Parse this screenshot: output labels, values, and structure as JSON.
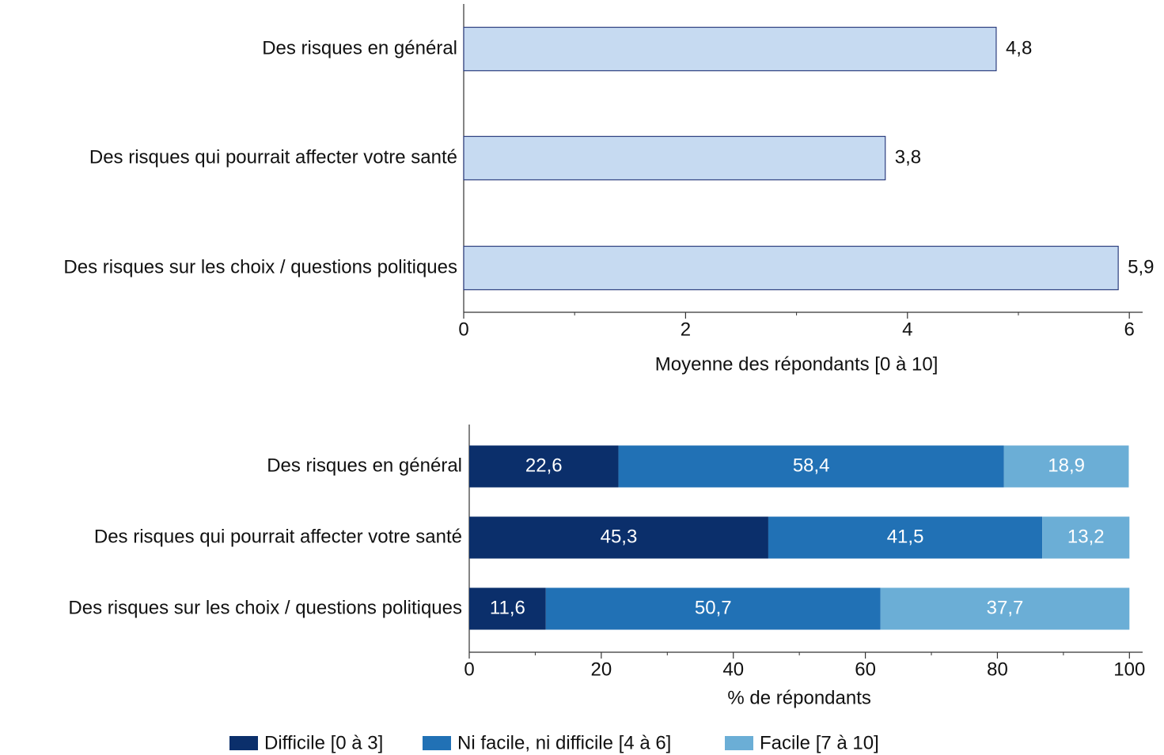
{
  "chart_data": [
    {
      "type": "hbar",
      "categories": [
        "Des risques en général",
        "Des risques qui pourrait affecter votre santé",
        "Des risques sur les choix / questions politiques"
      ],
      "values": [
        4.8,
        3.8,
        5.9
      ],
      "value_labels": [
        "4,8",
        "3,8",
        "5,9"
      ],
      "color": "#c6daf1",
      "edge_color": "#2e3f7f",
      "xlabel": "Moyenne des répondants [0 à 10]",
      "xlim": [
        0,
        6.12
      ],
      "xticks": [
        0,
        2,
        4,
        6
      ],
      "minor_xticks": [
        1,
        3,
        5
      ]
    },
    {
      "type": "stacked_hbar",
      "categories": [
        "Des risques en général",
        "Des risques qui pourrait affecter votre santé",
        "Des risques sur les choix / questions politiques"
      ],
      "series": [
        {
          "name": "Difficile [0 à 3]",
          "color": "#0b2f6b",
          "values": [
            22.6,
            45.3,
            11.6
          ],
          "value_labels": [
            "22,6",
            "45,3",
            "11,6"
          ]
        },
        {
          "name": "Ni facile, ni difficile [4 à 6]",
          "color": "#2171b5",
          "values": [
            58.4,
            41.5,
            50.7
          ],
          "value_labels": [
            "58,4",
            "41,5",
            "50,7"
          ]
        },
        {
          "name": "Facile [7 à 10]",
          "color": "#6baed6",
          "values": [
            18.9,
            13.2,
            37.7
          ],
          "value_labels": [
            "18,9",
            "13,2",
            "37,7"
          ]
        }
      ],
      "xlabel": "% de répondants",
      "xlim": [
        0,
        102
      ],
      "xticks": [
        0,
        20,
        40,
        60,
        80,
        100
      ],
      "minor_xticks": [
        10,
        30,
        50,
        70,
        90
      ],
      "legend": "bottom"
    }
  ]
}
